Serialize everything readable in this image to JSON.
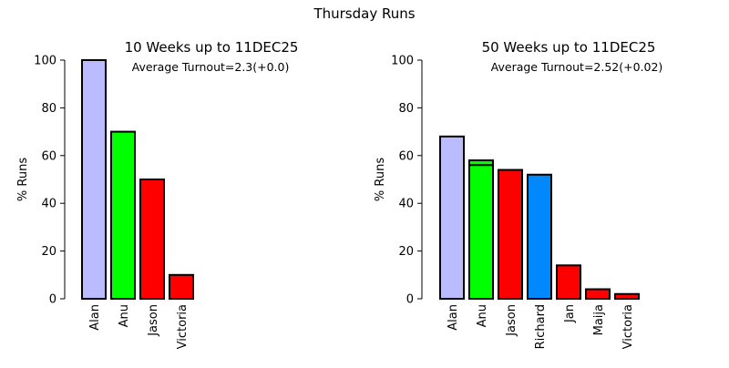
{
  "figure": {
    "title": "Thursday Runs"
  },
  "chart_data": [
    {
      "type": "bar",
      "title": "10 Weeks up to 11DEC25",
      "annotation": "Average Turnout=2.3(+0.0)",
      "ylabel": "% Runs",
      "xlabel": "",
      "ylim": [
        0,
        100
      ],
      "yticks": [
        "0",
        "20",
        "40",
        "60",
        "80",
        "100"
      ],
      "grid": false,
      "categories": [
        "Alan",
        "Anu",
        "Jason",
        "Victoria"
      ],
      "values": [
        100,
        70,
        50,
        10
      ],
      "colors": [
        "#bbbbff",
        "#00ff00",
        "#ff0000",
        "#ff0000"
      ],
      "inner_lines": [
        null,
        null,
        null,
        null
      ]
    },
    {
      "type": "bar",
      "title": "50 Weeks up to 11DEC25",
      "annotation": "Average Turnout=2.52(+0.02)",
      "ylabel": "% Runs",
      "xlabel": "",
      "ylim": [
        0,
        100
      ],
      "yticks": [
        "0",
        "20",
        "40",
        "60",
        "80",
        "100"
      ],
      "grid": false,
      "categories": [
        "Alan",
        "Anu",
        "Jason",
        "Richard",
        "Jan",
        "Maija",
        "Victoria"
      ],
      "values": [
        68,
        58,
        54,
        52,
        14,
        4,
        2
      ],
      "colors": [
        "#bbbbff",
        "#00ff00",
        "#ff0000",
        "#0088ff",
        "#ff0000",
        "#ff0000",
        "#ff0000"
      ],
      "inner_lines": [
        null,
        56,
        null,
        null,
        null,
        null,
        null
      ]
    }
  ]
}
